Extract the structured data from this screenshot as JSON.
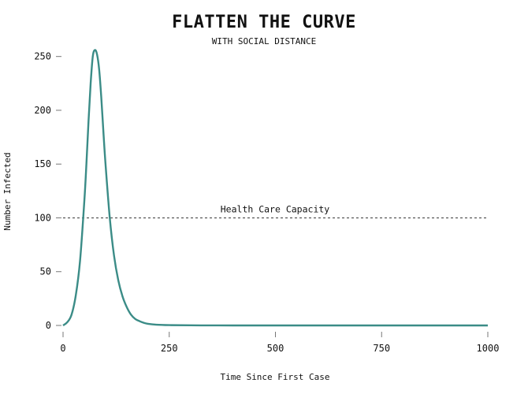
{
  "chart_data": {
    "type": "line",
    "title": "FLATTEN THE CURVE",
    "subtitle": "WITH SOCIAL DISTANCE",
    "xlabel": "Time Since First Case",
    "ylabel": "Number Infected",
    "xlim": [
      0,
      1000
    ],
    "ylim": [
      0,
      260
    ],
    "xticks": [
      0,
      250,
      500,
      750,
      1000
    ],
    "yticks": [
      0,
      50,
      100,
      150,
      200,
      250
    ],
    "grid": false,
    "line_color": "#3b8c87",
    "capacity": {
      "label": "Health Care Capacity",
      "value": 100,
      "color": "#555555"
    },
    "series": [
      {
        "x": [
          0,
          10,
          20,
          30,
          40,
          50,
          55,
          60,
          65,
          70,
          75,
          80,
          85,
          90,
          95,
          100,
          110,
          120,
          130,
          140,
          150,
          160,
          170,
          180,
          190,
          200,
          220,
          250,
          300,
          400,
          500,
          600,
          700,
          800,
          900,
          1000
        ],
        "values": [
          0,
          3,
          10,
          28,
          60,
          115,
          150,
          190,
          225,
          250,
          256,
          252,
          238,
          212,
          180,
          150,
          100,
          65,
          42,
          27,
          17,
          10,
          6,
          4,
          2.5,
          1.5,
          0.7,
          0.3,
          0.1,
          0,
          0,
          0,
          0,
          0,
          0,
          0
        ]
      }
    ]
  }
}
